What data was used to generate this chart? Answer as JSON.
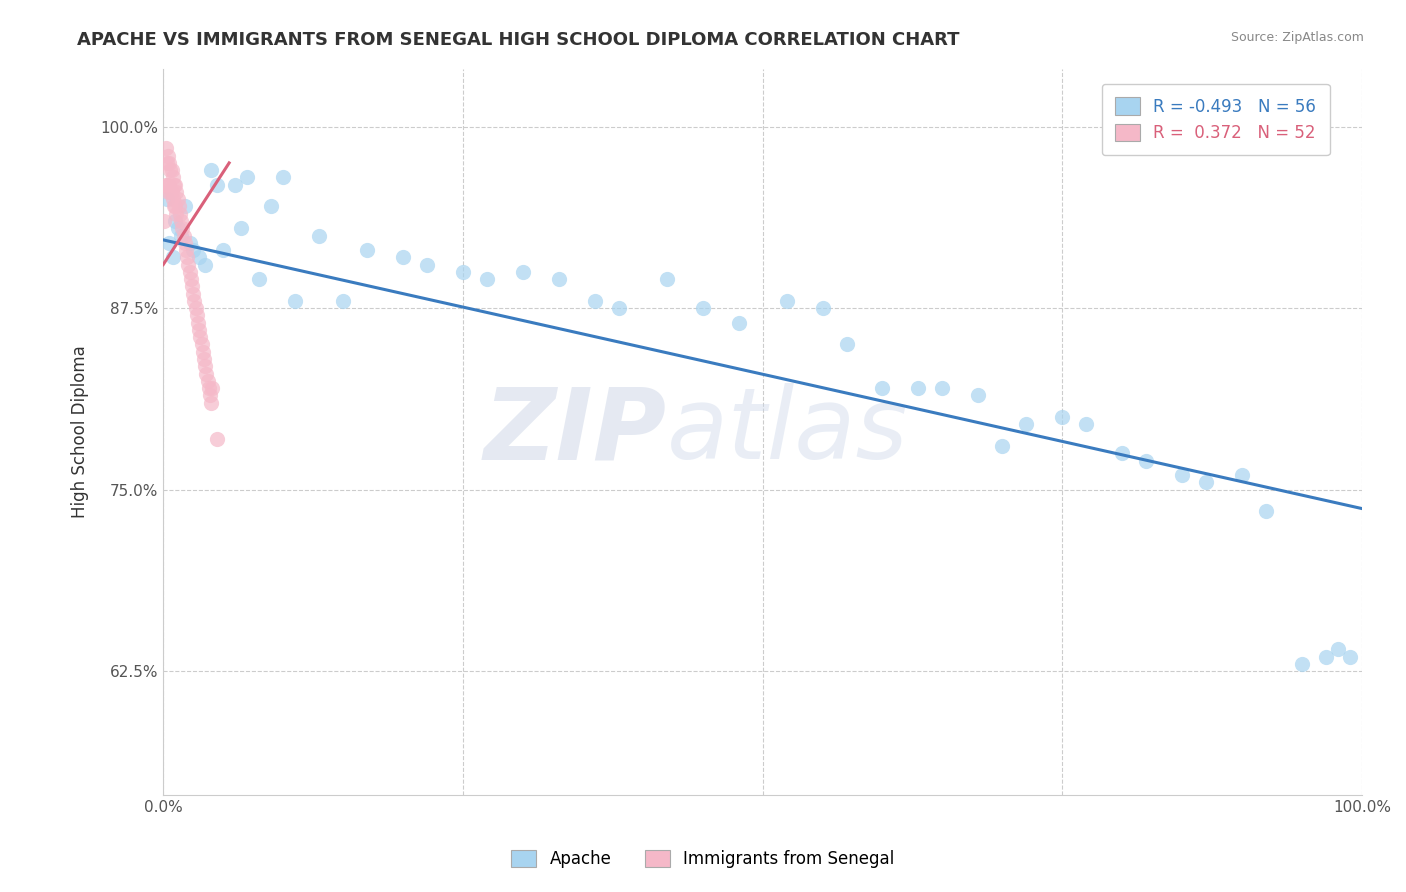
{
  "title": "APACHE VS IMMIGRANTS FROM SENEGAL HIGH SCHOOL DIPLOMA CORRELATION CHART",
  "source": "Source: ZipAtlas.com",
  "ylabel": "High School Diploma",
  "xmin": 0.0,
  "xmax": 1.0,
  "ymin": 0.54,
  "ymax": 1.04,
  "yticks": [
    0.625,
    0.75,
    0.875,
    1.0
  ],
  "ytick_labels": [
    "62.5%",
    "75.0%",
    "87.5%",
    "100.0%"
  ],
  "xticks": [
    0.0,
    0.25,
    0.5,
    0.75,
    1.0
  ],
  "xtick_labels": [
    "0.0%",
    "",
    "",
    "",
    "100.0%"
  ],
  "apache_color": "#a8d4f0",
  "senegal_color": "#f5b8c8",
  "apache_trend_color": "#3a7bbf",
  "senegal_trend_color": "#d9607a",
  "watermark_zip": "ZIP",
  "watermark_atlas": "atlas",
  "background_color": "#ffffff",
  "grid_color": "#cccccc",
  "apache_N": 56,
  "senegal_N": 52,
  "apache_R": -0.493,
  "senegal_R": 0.372,
  "apache_trend_x0": 0.0,
  "apache_trend_y0": 0.922,
  "apache_trend_x1": 1.0,
  "apache_trend_y1": 0.737,
  "senegal_trend_x0": 0.0,
  "senegal_trend_y0": 0.905,
  "senegal_trend_x1": 0.055,
  "senegal_trend_y1": 0.975,
  "apache_x": [
    0.003,
    0.005,
    0.008,
    0.01,
    0.012,
    0.015,
    0.018,
    0.022,
    0.025,
    0.03,
    0.035,
    0.04,
    0.045,
    0.05,
    0.06,
    0.065,
    0.07,
    0.08,
    0.09,
    0.1,
    0.11,
    0.13,
    0.15,
    0.17,
    0.2,
    0.22,
    0.25,
    0.27,
    0.3,
    0.33,
    0.36,
    0.38,
    0.42,
    0.45,
    0.48,
    0.52,
    0.55,
    0.57,
    0.6,
    0.63,
    0.65,
    0.68,
    0.7,
    0.72,
    0.75,
    0.77,
    0.8,
    0.82,
    0.85,
    0.87,
    0.9,
    0.92,
    0.95,
    0.97,
    0.98,
    0.99
  ],
  "apache_y": [
    0.95,
    0.92,
    0.91,
    0.935,
    0.93,
    0.925,
    0.945,
    0.92,
    0.915,
    0.91,
    0.905,
    0.97,
    0.96,
    0.915,
    0.96,
    0.93,
    0.965,
    0.895,
    0.945,
    0.965,
    0.88,
    0.925,
    0.88,
    0.915,
    0.91,
    0.905,
    0.9,
    0.895,
    0.9,
    0.895,
    0.88,
    0.875,
    0.895,
    0.875,
    0.865,
    0.88,
    0.875,
    0.85,
    0.82,
    0.82,
    0.82,
    0.815,
    0.78,
    0.795,
    0.8,
    0.795,
    0.775,
    0.77,
    0.76,
    0.755,
    0.76,
    0.735,
    0.63,
    0.635,
    0.64,
    0.635
  ],
  "senegal_x": [
    0.001,
    0.002,
    0.002,
    0.003,
    0.003,
    0.004,
    0.004,
    0.005,
    0.005,
    0.006,
    0.006,
    0.007,
    0.007,
    0.008,
    0.008,
    0.009,
    0.009,
    0.01,
    0.01,
    0.011,
    0.011,
    0.012,
    0.013,
    0.014,
    0.015,
    0.016,
    0.017,
    0.018,
    0.019,
    0.02,
    0.021,
    0.022,
    0.023,
    0.024,
    0.025,
    0.026,
    0.027,
    0.028,
    0.029,
    0.03,
    0.031,
    0.032,
    0.033,
    0.034,
    0.035,
    0.036,
    0.037,
    0.038,
    0.039,
    0.04,
    0.041,
    0.045
  ],
  "senegal_y": [
    0.935,
    0.96,
    0.985,
    0.975,
    0.96,
    0.98,
    0.955,
    0.975,
    0.96,
    0.97,
    0.955,
    0.97,
    0.955,
    0.965,
    0.95,
    0.96,
    0.945,
    0.96,
    0.945,
    0.955,
    0.94,
    0.95,
    0.945,
    0.94,
    0.935,
    0.93,
    0.925,
    0.92,
    0.915,
    0.91,
    0.905,
    0.9,
    0.895,
    0.89,
    0.885,
    0.88,
    0.875,
    0.87,
    0.865,
    0.86,
    0.855,
    0.85,
    0.845,
    0.84,
    0.835,
    0.83,
    0.825,
    0.82,
    0.815,
    0.81,
    0.82,
    0.785
  ]
}
